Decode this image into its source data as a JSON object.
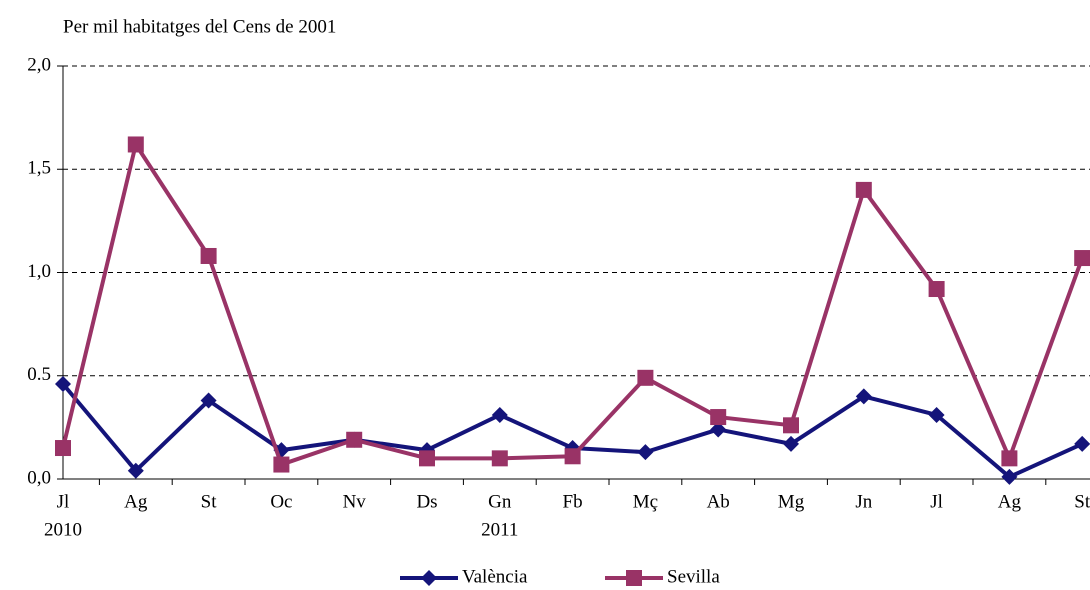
{
  "chart_data": {
    "type": "line",
    "title": "Per mil habitatges del Cens de 2001",
    "categories": [
      "Jl",
      "Ag",
      "St",
      "Oc",
      "Nv",
      "Ds",
      "Gn",
      "Fb",
      "Mç",
      "Ab",
      "Mg",
      "Jn",
      "Jl",
      "Ag",
      "St"
    ],
    "years": [
      "2010",
      null,
      null,
      null,
      null,
      null,
      "2011",
      null,
      null,
      null,
      null,
      null,
      null,
      null,
      null
    ],
    "series": [
      {
        "name": "València",
        "color": "#14147a",
        "marker": "diamond",
        "values": [
          0.46,
          0.04,
          0.38,
          0.14,
          0.19,
          0.14,
          0.31,
          0.15,
          0.13,
          0.24,
          0.17,
          0.4,
          0.31,
          0.01,
          0.17
        ]
      },
      {
        "name": "Sevilla",
        "color": "#993366",
        "marker": "square",
        "values": [
          0.15,
          1.62,
          1.08,
          0.07,
          0.19,
          0.1,
          0.1,
          0.11,
          0.49,
          0.3,
          0.26,
          1.4,
          0.92,
          0.1,
          1.07
        ]
      }
    ],
    "ylim": [
      0,
      2
    ],
    "yticks": [
      {
        "value": 0,
        "label": "0,0"
      },
      {
        "value": 0.5,
        "label": "0.5"
      },
      {
        "value": 1,
        "label": "1,0"
      },
      {
        "value": 1.5,
        "label": "1,5"
      },
      {
        "value": 2,
        "label": "2,0"
      }
    ],
    "grid": true,
    "legend": "bottom"
  }
}
